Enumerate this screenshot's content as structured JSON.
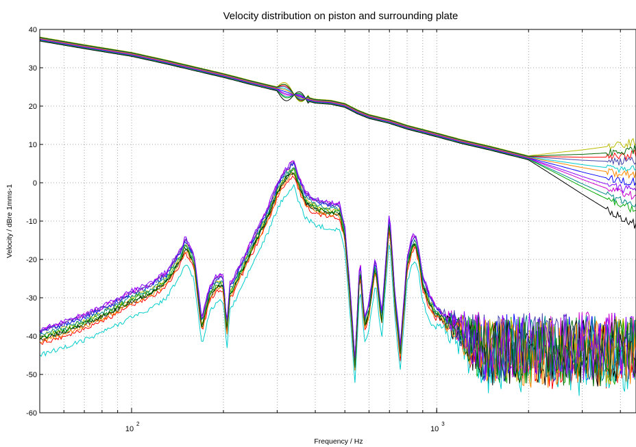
{
  "chart_data": {
    "type": "line",
    "title": "Velocity distribution on piston and surrounding plate",
    "xlabel": "Frequency / Hz",
    "ylabel": "Velocity / dBre 1mms-1",
    "xscale": "log",
    "xlim": [
      50,
      4500
    ],
    "ylim": [
      -60,
      40
    ],
    "yticks": [
      40,
      30,
      20,
      10,
      0,
      -10,
      -20,
      -30,
      -40,
      -50,
      -60
    ],
    "ytick_labels": [
      "40",
      "30",
      "20",
      "10",
      "0",
      "-10",
      "-20",
      "-30",
      "-40",
      "-50",
      "-60"
    ],
    "xtick_labels": [
      {
        "value": 100,
        "base": "10",
        "exp": "2"
      },
      {
        "value": 1000,
        "base": "10",
        "exp": "3"
      }
    ],
    "grid": true,
    "piston_trend": {
      "x": [
        50,
        70,
        100,
        130,
        160,
        200,
        250,
        300,
        340,
        370,
        400,
        450,
        500,
        550,
        600,
        700,
        800,
        1000,
        1200,
        1500,
        2000,
        2500,
        3000,
        3500,
        4000,
        4500
      ],
      "y": [
        37.5,
        35.5,
        33.5,
        31.5,
        29.8,
        28,
        26,
        24.5,
        23,
        22,
        21.3,
        21,
        20.2,
        18.5,
        17.3,
        16,
        14.5,
        12.5,
        10.8,
        9,
        6.5,
        4.5,
        2.8,
        1.5,
        0.5,
        0
      ]
    },
    "plate_base": {
      "x": [
        50,
        60,
        70,
        80,
        90,
        100,
        115,
        130,
        145,
        150,
        160,
        170,
        180,
        190,
        200,
        205,
        210,
        215,
        230,
        250,
        280,
        300,
        320,
        340,
        350,
        370,
        400,
        450,
        480,
        500,
        520,
        540,
        560,
        580,
        600,
        630,
        660,
        700,
        730,
        760,
        800,
        830,
        850,
        870,
        900,
        950,
        1000
      ],
      "y": [
        -39,
        -37,
        -35,
        -33,
        -31,
        -29,
        -27,
        -24,
        -18,
        -15,
        -19,
        -36,
        -28,
        -25,
        -25,
        -38,
        -27,
        -26,
        -21,
        -15,
        -7,
        -1,
        3,
        5,
        2,
        -3,
        -5,
        -6,
        -6,
        -12,
        -28,
        -47,
        -20,
        -36,
        -32,
        -20,
        -35,
        -8,
        -30,
        -43,
        -20,
        -15,
        -14,
        -17,
        -25,
        -30,
        -33
      ]
    },
    "plate_floor": -43,
    "series": [
      {
        "color": "#0000ff",
        "trend_offset": 0.0,
        "plate_offset": 0.0
      },
      {
        "color": "#ff0000",
        "trend_offset": 1.0,
        "plate_offset": -3.0
      },
      {
        "color": "#00aa00",
        "trend_offset": -1.0,
        "plate_offset": -1.5
      },
      {
        "color": "#00cccc",
        "trend_offset": 0.5,
        "plate_offset": -6.0
      },
      {
        "color": "#cc00cc",
        "trend_offset": -0.5,
        "plate_offset": 0.5
      },
      {
        "color": "#bbbb00",
        "trend_offset": 1.5,
        "plate_offset": -1.0
      },
      {
        "color": "#000000",
        "trend_offset": -1.5,
        "plate_offset": -2.0
      },
      {
        "color": "#4444aa",
        "trend_offset": 0.8,
        "plate_offset": 0.3
      },
      {
        "color": "#008888",
        "trend_offset": -0.8,
        "plate_offset": -0.8
      },
      {
        "color": "#ff8800",
        "trend_offset": 0.3,
        "plate_offset": -2.5
      },
      {
        "color": "#8800ff",
        "trend_offset": -0.3,
        "plate_offset": 0.8
      },
      {
        "color": "#006600",
        "trend_offset": 1.2,
        "plate_offset": -1.8
      }
    ]
  }
}
